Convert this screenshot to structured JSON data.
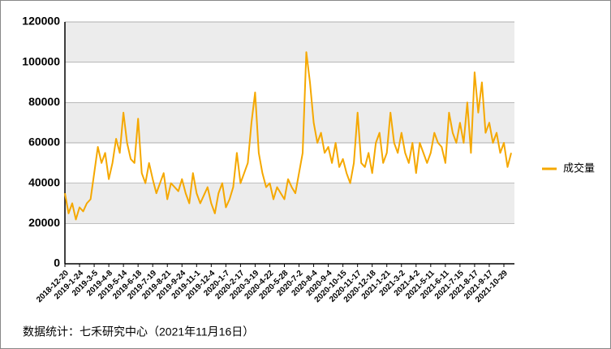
{
  "chart_data": {
    "type": "line",
    "categories": [
      "2018-12-20",
      null,
      null,
      null,
      "2019-1-24",
      null,
      null,
      null,
      "2019-3-5",
      null,
      null,
      null,
      "2019-4-8",
      null,
      null,
      null,
      "2019-5-14",
      null,
      null,
      null,
      "2019-6-18",
      null,
      null,
      null,
      "2019-7-19",
      null,
      null,
      null,
      "2019-8-21",
      null,
      null,
      null,
      "2019-9-24",
      null,
      null,
      null,
      "2019-11-1",
      null,
      null,
      null,
      "2019-12-4",
      null,
      null,
      null,
      "2020-1-7",
      null,
      null,
      null,
      "2020-2-17",
      null,
      null,
      null,
      "2020-3-19",
      null,
      null,
      null,
      "2020-4-22",
      null,
      null,
      null,
      "2020-5-28",
      null,
      null,
      null,
      "2020-7-2",
      null,
      null,
      null,
      "2020-8-4",
      null,
      null,
      null,
      "2020-9-4",
      null,
      null,
      null,
      "2020-10-15",
      null,
      null,
      null,
      "2020-11-17",
      null,
      null,
      null,
      "2020-12-18",
      null,
      null,
      null,
      "2021-1-21",
      null,
      null,
      null,
      "2021-3-2",
      null,
      null,
      null,
      "2021-4-2",
      null,
      null,
      null,
      "2021-5-11",
      null,
      null,
      null,
      "2021-6-11",
      null,
      null,
      null,
      "2021-7-15",
      null,
      null,
      null,
      "2021-8-17",
      null,
      null,
      null,
      "2021-9-17",
      null,
      null,
      null,
      "2021-10-29",
      null,
      null
    ],
    "series": [
      {
        "name": "成交量",
        "color": "#f5a800",
        "values": [
          35000,
          25000,
          30000,
          22000,
          28000,
          26000,
          30000,
          32000,
          45000,
          58000,
          50000,
          55000,
          42000,
          50000,
          62000,
          55000,
          75000,
          60000,
          52000,
          50000,
          72000,
          45000,
          40000,
          50000,
          42000,
          35000,
          40000,
          45000,
          32000,
          40000,
          38000,
          36000,
          42000,
          35000,
          30000,
          45000,
          35000,
          30000,
          34000,
          38000,
          30000,
          25000,
          35000,
          40000,
          28000,
          32000,
          38000,
          55000,
          40000,
          45000,
          50000,
          70000,
          85000,
          55000,
          45000,
          38000,
          40000,
          32000,
          38000,
          35000,
          32000,
          42000,
          38000,
          35000,
          45000,
          55000,
          105000,
          90000,
          70000,
          60000,
          65000,
          55000,
          58000,
          50000,
          60000,
          48000,
          52000,
          45000,
          40000,
          50000,
          75000,
          50000,
          48000,
          55000,
          45000,
          60000,
          65000,
          50000,
          55000,
          75000,
          60000,
          55000,
          65000,
          55000,
          50000,
          60000,
          45000,
          60000,
          55000,
          50000,
          55000,
          65000,
          60000,
          58000,
          50000,
          75000,
          65000,
          60000,
          70000,
          60000,
          80000,
          55000,
          95000,
          75000,
          90000,
          65000,
          70000,
          60000,
          65000,
          55000,
          60000,
          48000,
          55000
        ]
      }
    ],
    "ylim": [
      0,
      120000
    ],
    "yticks": [
      0,
      20000,
      40000,
      60000,
      80000,
      100000,
      120000
    ],
    "legend": "right",
    "footnote": "数据统计：七禾研究中心（2021年11月16日）"
  }
}
